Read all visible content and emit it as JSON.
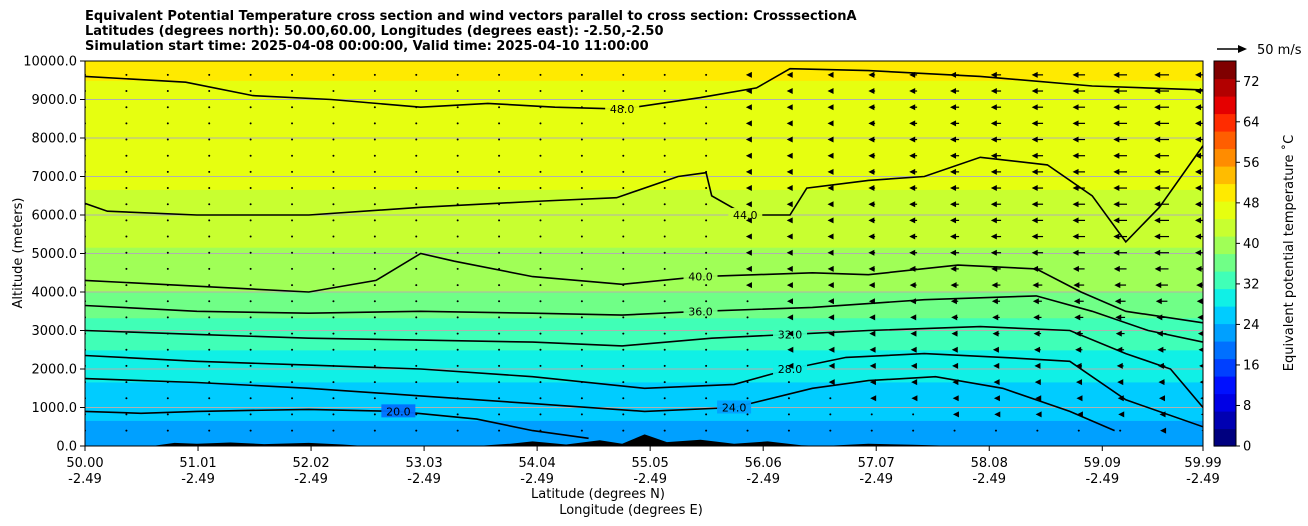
{
  "chart_data": {
    "type": "heatmap",
    "title_lines": [
      "Equivalent Potential Temperature cross section and wind vectors parallel to cross section: CrosssectionA",
      "Latitudes (degrees north): 50.00,60.00, Longitudes (degrees east): -2.50,-2.50",
      "Simulation start time: 2025-04-08 00:00:00, Valid time: 2025-04-10 11:00:00"
    ],
    "ylabel": "Altitude (meters)",
    "xlabel_lines": [
      "Latitude (degrees N)",
      "Longitude (degrees E)"
    ],
    "ylim": [
      0,
      10000
    ],
    "xlim": [
      50.0,
      59.99
    ],
    "y_ticks": [
      {
        "value": 0,
        "label": "0.0"
      },
      {
        "value": 1000,
        "label": "1000.0"
      },
      {
        "value": 2000,
        "label": "2000.0"
      },
      {
        "value": 3000,
        "label": "3000.0"
      },
      {
        "value": 4000,
        "label": "4000.0"
      },
      {
        "value": 5000,
        "label": "5000.0"
      },
      {
        "value": 6000,
        "label": "6000.0"
      },
      {
        "value": 7000,
        "label": "7000.0"
      },
      {
        "value": 8000,
        "label": "8000.0"
      },
      {
        "value": 9000,
        "label": "9000.0"
      },
      {
        "value": 10000,
        "label": "10000.0"
      }
    ],
    "x_ticks": [
      {
        "value": 50.0,
        "lat": "50.00",
        "lon": "-2.49"
      },
      {
        "value": 51.01,
        "lat": "51.01",
        "lon": "-2.49"
      },
      {
        "value": 52.02,
        "lat": "52.02",
        "lon": "-2.49"
      },
      {
        "value": 53.03,
        "lat": "53.03",
        "lon": "-2.49"
      },
      {
        "value": 54.04,
        "lat": "54.04",
        "lon": "-2.49"
      },
      {
        "value": 55.05,
        "lat": "55.05",
        "lon": "-2.49"
      },
      {
        "value": 56.06,
        "lat": "56.06",
        "lon": "-2.49"
      },
      {
        "value": 57.07,
        "lat": "57.07",
        "lon": "-2.49"
      },
      {
        "value": 58.08,
        "lat": "58.08",
        "lon": "-2.49"
      },
      {
        "value": 59.09,
        "lat": "59.09",
        "lon": "-2.49"
      },
      {
        "value": 59.99,
        "lat": "59.99",
        "lon": "-2.49"
      }
    ],
    "grid": "horizontal",
    "colorbar": {
      "label": "Equivalent potential temperature ˚C",
      "range": [
        0,
        76
      ],
      "ticks": [
        0,
        8,
        16,
        24,
        32,
        40,
        48,
        56,
        64,
        72
      ],
      "colors": [
        "#00007f",
        "#0000b2",
        "#0000e5",
        "#0010ff",
        "#0040ff",
        "#0070ff",
        "#00a0ff",
        "#00ccff",
        "#10f0e6",
        "#40ffb7",
        "#70ff87",
        "#a0ff57",
        "#c8ff30",
        "#e6ff10",
        "#ffea00",
        "#ffbc00",
        "#ff8c00",
        "#ff5e00",
        "#ff2c00",
        "#e50000",
        "#b20000",
        "#7f0000"
      ]
    },
    "wind_legend": "50 m/s",
    "theta_e_profile": [
      {
        "z": 0,
        "theta": 22
      },
      {
        "z": 1000,
        "theta": 25
      },
      {
        "z": 2000,
        "theta": 29
      },
      {
        "z": 3000,
        "theta": 33
      },
      {
        "z": 4000,
        "theta": 38
      },
      {
        "z": 5000,
        "theta": 41
      },
      {
        "z": 6000,
        "theta": 44
      },
      {
        "z": 7000,
        "theta": 45.5
      },
      {
        "z": 8000,
        "theta": 46.5
      },
      {
        "z": 9000,
        "theta": 47.5
      },
      {
        "z": 10000,
        "theta": 49
      }
    ],
    "contours": [
      {
        "level": "48.0",
        "points": [
          [
            50.0,
            9600
          ],
          [
            50.9,
            9450
          ],
          [
            51.5,
            9100
          ],
          [
            52.2,
            9000
          ],
          [
            53.0,
            8800
          ],
          [
            53.6,
            8900
          ],
          [
            54.2,
            8800
          ],
          [
            54.8,
            8750
          ],
          [
            55.5,
            9050
          ],
          [
            56.0,
            9300
          ],
          [
            56.3,
            9800
          ],
          [
            57.0,
            9750
          ],
          [
            58.0,
            9600
          ],
          [
            59.0,
            9350
          ],
          [
            59.99,
            9250
          ]
        ]
      },
      {
        "level": "44.0",
        "points": [
          [
            50.0,
            6300
          ],
          [
            50.2,
            6100
          ],
          [
            51.0,
            6000
          ],
          [
            52.0,
            6000
          ],
          [
            53.0,
            6200
          ],
          [
            54.0,
            6350
          ],
          [
            54.75,
            6450
          ],
          [
            55.3,
            7000
          ],
          [
            55.55,
            7100
          ],
          [
            55.6,
            6500
          ],
          [
            55.9,
            6000
          ],
          [
            56.3,
            6000
          ],
          [
            56.45,
            6700
          ],
          [
            57.0,
            6900
          ],
          [
            57.5,
            7000
          ],
          [
            58.0,
            7500
          ],
          [
            58.6,
            7300
          ],
          [
            59.0,
            6500
          ],
          [
            59.3,
            5300
          ],
          [
            59.6,
            6200
          ],
          [
            59.99,
            7800
          ]
        ]
      },
      {
        "level": "40.0",
        "points": [
          [
            50.0,
            4300
          ],
          [
            51.0,
            4150
          ],
          [
            52.0,
            4000
          ],
          [
            52.6,
            4300
          ],
          [
            53.0,
            5000
          ],
          [
            53.3,
            4800
          ],
          [
            54.0,
            4400
          ],
          [
            54.8,
            4200
          ],
          [
            55.5,
            4400
          ],
          [
            56.0,
            4450
          ],
          [
            56.5,
            4500
          ],
          [
            57.0,
            4450
          ],
          [
            57.8,
            4700
          ],
          [
            58.5,
            4600
          ],
          [
            58.9,
            4000
          ],
          [
            59.3,
            3500
          ],
          [
            59.99,
            3200
          ]
        ]
      },
      {
        "level": "36.0",
        "points": [
          [
            50.0,
            3650
          ],
          [
            51.0,
            3500
          ],
          [
            52.0,
            3450
          ],
          [
            53.0,
            3500
          ],
          [
            54.0,
            3450
          ],
          [
            54.8,
            3400
          ],
          [
            55.5,
            3500
          ],
          [
            56.5,
            3600
          ],
          [
            57.5,
            3800
          ],
          [
            58.5,
            3900
          ],
          [
            59.0,
            3500
          ],
          [
            59.5,
            3000
          ],
          [
            59.99,
            2700
          ]
        ]
      },
      {
        "level": "32.0",
        "points": [
          [
            50.0,
            3000
          ],
          [
            51.0,
            2900
          ],
          [
            52.0,
            2800
          ],
          [
            53.0,
            2750
          ],
          [
            54.0,
            2700
          ],
          [
            54.8,
            2600
          ],
          [
            55.6,
            2800
          ],
          [
            56.3,
            2900
          ],
          [
            57.0,
            3000
          ],
          [
            58.0,
            3100
          ],
          [
            58.8,
            3000
          ],
          [
            59.3,
            2400
          ],
          [
            59.7,
            2000
          ],
          [
            59.99,
            1000
          ]
        ]
      },
      {
        "level": "28.0",
        "points": [
          [
            50.0,
            2350
          ],
          [
            51.0,
            2200
          ],
          [
            52.0,
            2100
          ],
          [
            53.0,
            2000
          ],
          [
            54.0,
            1800
          ],
          [
            55.0,
            1500
          ],
          [
            55.8,
            1600
          ],
          [
            56.3,
            2000
          ],
          [
            56.8,
            2300
          ],
          [
            57.5,
            2400
          ],
          [
            58.2,
            2300
          ],
          [
            58.8,
            2200
          ],
          [
            59.3,
            1200
          ],
          [
            59.99,
            500
          ]
        ]
      },
      {
        "level": "24.0",
        "points": [
          [
            50.0,
            1750
          ],
          [
            51.0,
            1650
          ],
          [
            52.0,
            1500
          ],
          [
            53.0,
            1300
          ],
          [
            54.0,
            1100
          ],
          [
            55.0,
            900
          ],
          [
            55.8,
            1000
          ],
          [
            56.5,
            1500
          ],
          [
            57.0,
            1700
          ],
          [
            57.6,
            1800
          ],
          [
            58.2,
            1500
          ],
          [
            58.8,
            900
          ],
          [
            59.2,
            400
          ]
        ]
      },
      {
        "level": "20.0",
        "points": [
          [
            50.0,
            900
          ],
          [
            50.5,
            850
          ],
          [
            51.0,
            900
          ],
          [
            52.0,
            950
          ],
          [
            52.8,
            900
          ],
          [
            53.5,
            700
          ],
          [
            54.0,
            400
          ],
          [
            54.5,
            200
          ]
        ]
      }
    ]
  }
}
